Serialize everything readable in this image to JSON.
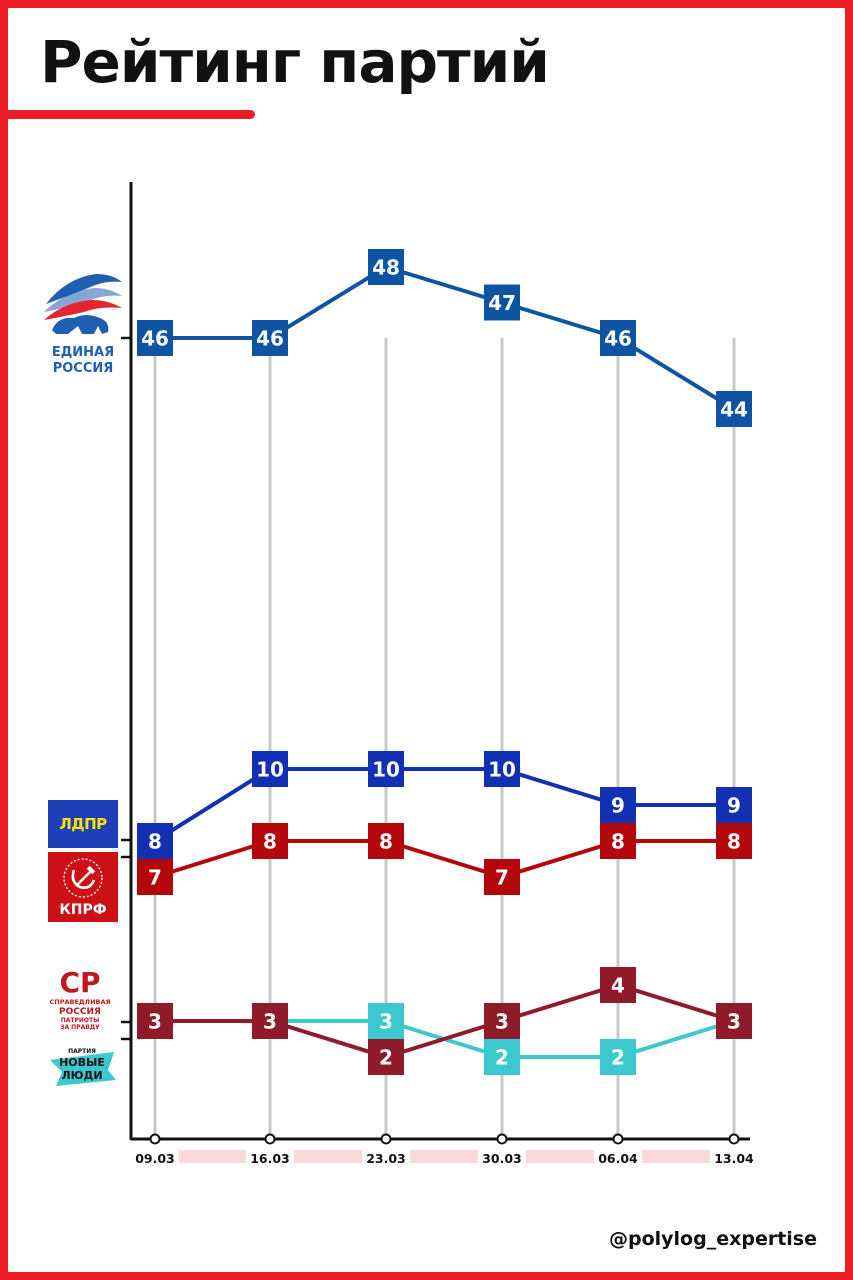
{
  "page": {
    "title": "Рейтинг партий",
    "handle": "@polylog_expertise"
  },
  "logos": {
    "er": {
      "line1": "ЕДИНАЯ",
      "line2": "РОССИЯ",
      "icon": "bear-flag-icon"
    },
    "ldpr": {
      "text": "ЛДПР"
    },
    "kprf": {
      "text": "КПРФ",
      "icon": "hammer-sickle-icon"
    },
    "sr": {
      "mark": "СР",
      "line1": "СПРАВЕДЛИВАЯ",
      "line2": "РОССИЯ",
      "line3": "ПАТРИОТЫ",
      "line4": "ЗА ПРАВДУ"
    },
    "nl": {
      "line1": "ПАРТИЯ",
      "line2": "НОВЫЕ",
      "line3": "ЛЮДИ"
    }
  },
  "colors": {
    "frame": "#ee1c25",
    "axis": "#111111",
    "gridline": "#c8c8c8",
    "date_band": "#fbd9da"
  },
  "chart_data": {
    "type": "line",
    "x": [
      "09.03",
      "16.03",
      "23.03",
      "30.03",
      "06.04",
      "13.04"
    ],
    "series": [
      {
        "key": "er",
        "values": [
          46,
          46,
          48,
          47,
          46,
          44
        ],
        "color": "#0f54a3"
      },
      {
        "key": "ldpr",
        "values": [
          8,
          10,
          10,
          10,
          9,
          9
        ],
        "color": "#1230b3"
      },
      {
        "key": "kprf",
        "values": [
          7,
          8,
          8,
          7,
          8,
          8
        ],
        "color": "#b3070c"
      },
      {
        "key": "sr",
        "values": [
          3,
          3,
          2,
          3,
          4,
          3
        ],
        "color": "#8f1b2a"
      },
      {
        "key": "nl",
        "values": [
          3,
          3,
          3,
          2,
          2,
          3
        ],
        "color": "#3cc8cf"
      }
    ]
  }
}
